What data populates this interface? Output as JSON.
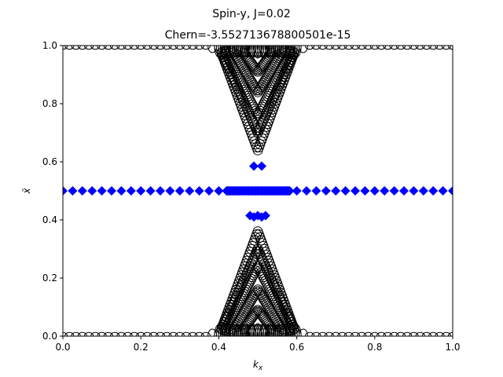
{
  "chart_data": {
    "type": "scatter",
    "suptitle": "Spin-y, J=0.02",
    "title": "Chern=-3.552713678800501e-15",
    "xlabel": "k_x",
    "ylabel": "x̄",
    "xlim": [
      0.0,
      1.0
    ],
    "ylim": [
      0.0,
      1.0
    ],
    "xticks": [
      "0.0",
      "0.2",
      "0.4",
      "0.6",
      "0.8",
      "1.0"
    ],
    "yticks": [
      "0.0",
      "0.2",
      "0.4",
      "0.6",
      "0.8",
      "1.0"
    ],
    "grid": false,
    "legend": "none",
    "colors": {
      "open_circles": "#000000",
      "diamonds": "#0000ff"
    },
    "series": [
      {
        "marker": "open-circle",
        "color": "#000000",
        "description_points": "bands near 0 and 1 plus V-shaped bands centered at kx=0.5",
        "bands": [
          {
            "kind": "edge",
            "y": 0.002
          },
          {
            "kind": "edge",
            "y": 0.998
          },
          {
            "kind": "v-upper",
            "apex": 0.64,
            "slope": 3.6
          },
          {
            "kind": "v-upper",
            "apex": 0.7,
            "slope": 3.0
          },
          {
            "kind": "v-upper",
            "apex": 0.76,
            "slope": 2.6
          },
          {
            "kind": "v-upper",
            "apex": 0.84,
            "slope": 2.2
          },
          {
            "kind": "v-upper",
            "apex": 0.91,
            "slope": 1.8
          },
          {
            "kind": "v-lower",
            "apex": 0.36,
            "slope": 3.6
          },
          {
            "kind": "v-lower",
            "apex": 0.3,
            "slope": 3.0
          },
          {
            "kind": "v-lower",
            "apex": 0.24,
            "slope": 2.6
          },
          {
            "kind": "v-lower",
            "apex": 0.16,
            "slope": 2.2
          },
          {
            "kind": "v-lower",
            "apex": 0.09,
            "slope": 1.8
          }
        ]
      },
      {
        "marker": "diamond",
        "color": "#0000ff",
        "points": [
          {
            "x": 0.49,
            "y": 0.585
          },
          {
            "x": 0.51,
            "y": 0.585
          },
          {
            "x": 0.48,
            "y": 0.415
          },
          {
            "x": 0.49,
            "y": 0.41
          },
          {
            "x": 0.5,
            "y": 0.415
          },
          {
            "x": 0.51,
            "y": 0.41
          },
          {
            "x": 0.52,
            "y": 0.415
          }
        ],
        "flat_band_y": 0.5
      }
    ]
  }
}
